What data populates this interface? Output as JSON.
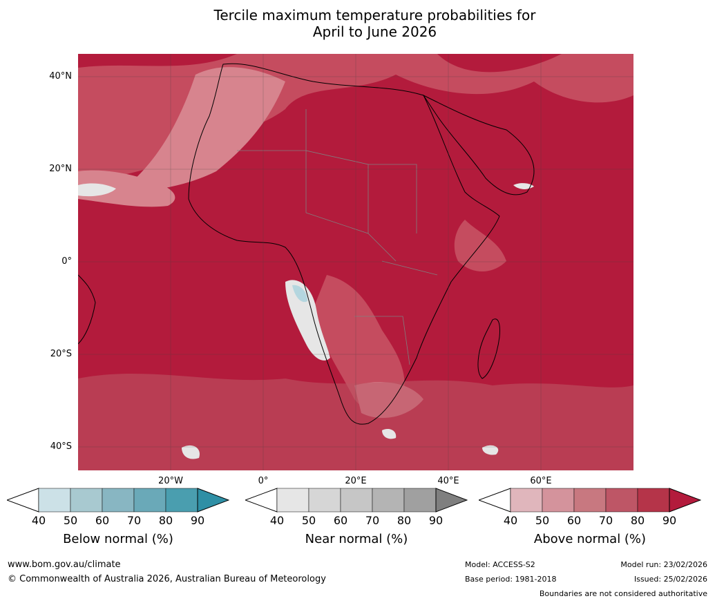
{
  "title": {
    "line1": "Tercile maximum temperature probabilities for",
    "line2": "April to June 2026"
  },
  "map": {
    "latitude_labels": [
      "40°N",
      "20°N",
      "0°",
      "20°S",
      "40°S"
    ],
    "longitude_labels": [
      "20°W",
      "0°",
      "20°E",
      "40°E",
      "60°E"
    ],
    "background_category": "above normal",
    "colors": {
      "above_dominant": "#b31b3c",
      "above_mid": "#c64f61",
      "above_light": "#d98a93",
      "near_light": "#e6e6e6",
      "below_light": "#b4d6df",
      "coast": "#000000",
      "border": "#808080",
      "grid": "#404040"
    }
  },
  "legends": [
    {
      "label": "Below normal (%)",
      "ticks": [
        "40",
        "50",
        "60",
        "70",
        "80",
        "90"
      ],
      "colors": [
        "#ffffff",
        "#cce1e7",
        "#a8c9d0",
        "#88b6c2",
        "#6aa9b8",
        "#4a9eaf",
        "#2e8fa5"
      ]
    },
    {
      "label": "Near normal (%)",
      "ticks": [
        "40",
        "50",
        "60",
        "70",
        "80",
        "90"
      ],
      "colors": [
        "#ffffff",
        "#e6e6e6",
        "#d6d6d6",
        "#c6c6c6",
        "#b4b4b4",
        "#a0a0a0",
        "#7f7f7f"
      ]
    },
    {
      "label": "Above normal (%)",
      "ticks": [
        "40",
        "50",
        "60",
        "70",
        "80",
        "90"
      ],
      "colors": [
        "#ffffff",
        "#e0b6bc",
        "#d4939c",
        "#c87880",
        "#be5666",
        "#b53449",
        "#b31b3c"
      ]
    }
  ],
  "footer": {
    "website": "www.bom.gov.au/climate",
    "copyright": "© Commonwealth of Australia 2026, Australian Bureau of Meteorology",
    "model": "Model: ACCESS-S2",
    "base_period": "Base period: 1981-2018",
    "model_run": "Model run: 23/02/2026",
    "issued": "Issued: 25/02/2026",
    "disclaimer": "Boundaries are not considered authoritative"
  }
}
